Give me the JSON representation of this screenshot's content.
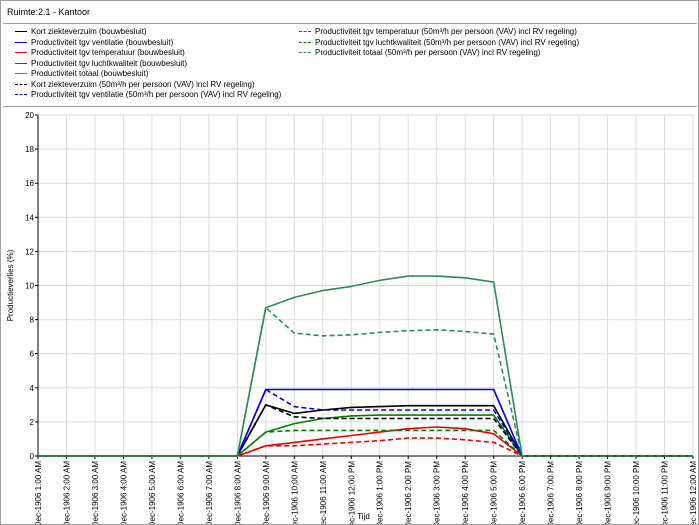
{
  "window": {
    "title": "Ruimte:2.1 - Kantoor"
  },
  "legend": {
    "left": [
      {
        "label": "Kort ziekteverzuim (bouwbesluit)",
        "color": "#000000",
        "dashed": false
      },
      {
        "label": "Productiviteit tgv ventilatie (bouwbesluit)",
        "color": "#0000ee",
        "dashed": false
      },
      {
        "label": "Productiviteit tgv temperatuur (bouwbesluit)",
        "color": "#ee0000",
        "dashed": false
      },
      {
        "label": "Productiviteit tgv luchtkwaliteit (bouwbesluit)",
        "color": "#008000",
        "dashed": false
      },
      {
        "label": "Productiviteit totaal (bouwbesluit)",
        "color": "#2e8b57",
        "dashed": false
      },
      {
        "label": "Kort ziekteverzuim (50m³/h per persoon (VAV) incl RV regeling)",
        "color": "#000000",
        "dashed": true
      },
      {
        "label": "Productiviteit tgv ventilatie (50m³/h per persoon (VAV) incl RV regeling)",
        "color": "#0000ee",
        "dashed": true
      }
    ],
    "right": [
      {
        "label": "Productiviteit tgv temperatuur (50m³/h per persoon (VAV) incl RV regeling)",
        "color": "#ee0000",
        "dashed": true
      },
      {
        "label": "Productiviteit tgv luchtkwaliteit (50m³/h per persoon (VAV) incl RV regeling)",
        "color": "#008000",
        "dashed": true
      },
      {
        "label": "Productiviteit totaal (50m³/h per persoon (VAV) incl RV regeling)",
        "color": "#2e8b57",
        "dashed": true
      }
    ]
  },
  "chart_data": {
    "type": "line",
    "xlabel": "Tijd",
    "ylabel": "Productieverlies (%)",
    "ylim": [
      0,
      20
    ],
    "yticks": [
      0,
      2,
      4,
      6,
      8,
      10,
      12,
      14,
      16,
      18,
      20
    ],
    "grid": true,
    "categories": [
      "5-Dec-1906 1:00 AM",
      "5-Dec-1906 2:00 AM",
      "5-Dec-1906 3:00 AM",
      "5-Dec-1906 4:00 AM",
      "5-Dec-1906 5:00 AM",
      "5-Dec-1906 6:00 AM",
      "5-Dec-1906 7:00 AM",
      "5-Dec-1906 8:00 AM",
      "5-Dec-1906 9:00 AM",
      "5-Dec-1906 10:00 AM",
      "5-Dec-1906 11:00 AM",
      "5-Dec-1906 12:00 PM",
      "5-Dec-1906 1:00 PM",
      "5-Dec-1906 2:00 PM",
      "5-Dec-1906 3:00 PM",
      "5-Dec-1906 4:00 PM",
      "5-Dec-1906 5:00 PM",
      "5-Dec-1906 6:00 PM",
      "5-Dec-1906 7:00 PM",
      "5-Dec-1906 8:00 PM",
      "5-Dec-1906 9:00 PM",
      "5-Dec-1906 10:00 PM",
      "5-Dec-1906 11:00 PM",
      "5-Dec-1906 12:00 AM"
    ],
    "series": [
      {
        "name": "Kort ziekteverzuim (bouwbesluit)",
        "color": "#000000",
        "dashed": false,
        "values": [
          0,
          0,
          0,
          0,
          0,
          0,
          0,
          0,
          3.0,
          2.5,
          2.7,
          2.85,
          2.9,
          2.95,
          2.95,
          2.95,
          2.95,
          0,
          0,
          0,
          0,
          0,
          0,
          0
        ]
      },
      {
        "name": "Productiviteit tgv ventilatie (bouwbesluit)",
        "color": "#0000ee",
        "dashed": false,
        "values": [
          0,
          0,
          0,
          0,
          0,
          0,
          0,
          0,
          3.9,
          3.9,
          3.9,
          3.9,
          3.9,
          3.9,
          3.9,
          3.9,
          3.9,
          0,
          0,
          0,
          0,
          0,
          0,
          0
        ]
      },
      {
        "name": "Productiviteit tgv temperatuur (bouwbesluit)",
        "color": "#ee0000",
        "dashed": false,
        "values": [
          0,
          0,
          0,
          0,
          0,
          0,
          0,
          0,
          0.6,
          0.8,
          1.0,
          1.2,
          1.4,
          1.6,
          1.7,
          1.6,
          1.3,
          0,
          0,
          0,
          0,
          0,
          0,
          0
        ]
      },
      {
        "name": "Productiviteit tgv luchtkwaliteit (bouwbesluit)",
        "color": "#008000",
        "dashed": false,
        "values": [
          0,
          0,
          0,
          0,
          0,
          0,
          0,
          0,
          1.4,
          1.9,
          2.2,
          2.35,
          2.4,
          2.4,
          2.4,
          2.4,
          2.4,
          0,
          0,
          0,
          0,
          0,
          0,
          0
        ]
      },
      {
        "name": "Productiviteit totaal (bouwbesluit)",
        "color": "#2e8b57",
        "dashed": false,
        "values": [
          0,
          0,
          0,
          0,
          0,
          0,
          0,
          0,
          8.7,
          9.3,
          9.7,
          9.95,
          10.3,
          10.55,
          10.55,
          10.45,
          10.2,
          0,
          0,
          0,
          0,
          0,
          0,
          0
        ]
      },
      {
        "name": "Kort ziekteverzuim (50m³/h per persoon (VAV) incl RV regeling)",
        "color": "#000000",
        "dashed": true,
        "values": [
          0,
          0,
          0,
          0,
          0,
          0,
          0,
          0,
          3.0,
          2.3,
          2.2,
          2.2,
          2.2,
          2.2,
          2.2,
          2.2,
          2.2,
          0,
          0,
          0,
          0,
          0,
          0,
          0
        ]
      },
      {
        "name": "Productiviteit tgv ventilatie (50m³/h per persoon (VAV) incl RV regeling)",
        "color": "#0000ee",
        "dashed": true,
        "values": [
          0,
          0,
          0,
          0,
          0,
          0,
          0,
          0,
          3.9,
          2.9,
          2.7,
          2.7,
          2.7,
          2.7,
          2.7,
          2.7,
          2.7,
          0,
          0,
          0,
          0,
          0,
          0,
          0
        ]
      },
      {
        "name": "Productiviteit tgv temperatuur (50m³/h per persoon (VAV) incl RV regeling)",
        "color": "#ee0000",
        "dashed": true,
        "values": [
          0,
          0,
          0,
          0,
          0,
          0,
          0,
          0,
          0.6,
          0.6,
          0.7,
          0.8,
          0.9,
          1.05,
          1.05,
          0.95,
          0.8,
          0,
          0,
          0,
          0,
          0,
          0,
          0
        ]
      },
      {
        "name": "Productiviteit tgv luchtkwaliteit (50m³/h per persoon (VAV) incl RV regeling)",
        "color": "#008000",
        "dashed": true,
        "values": [
          0,
          0,
          0,
          0,
          0,
          0,
          0,
          0,
          1.4,
          1.5,
          1.5,
          1.5,
          1.5,
          1.5,
          1.5,
          1.5,
          1.5,
          0,
          0,
          0,
          0,
          0,
          0,
          0
        ]
      },
      {
        "name": "Productiviteit totaal (50m³/h per persoon (VAV) incl RV regeling)",
        "color": "#2e8b57",
        "dashed": true,
        "values": [
          0,
          0,
          0,
          0,
          0,
          0,
          0,
          0,
          8.7,
          7.2,
          7.05,
          7.1,
          7.25,
          7.35,
          7.4,
          7.3,
          7.15,
          0,
          0,
          0,
          0,
          0,
          0,
          0
        ]
      }
    ]
  }
}
